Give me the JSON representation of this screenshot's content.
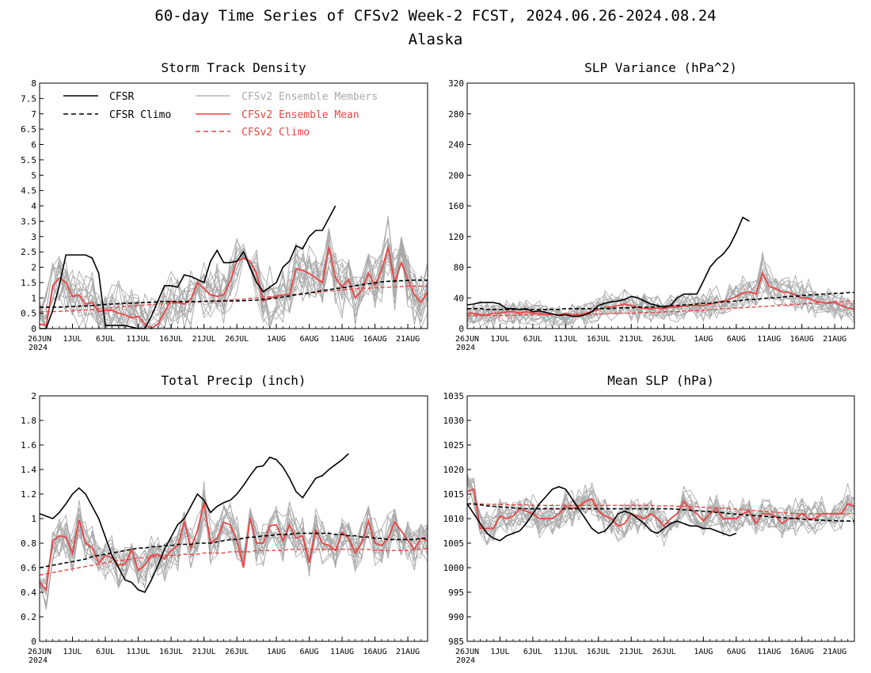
{
  "figure": {
    "title_line1": "60-day Time Series of CFSv2 Week-2 FCST, 2024.06.26-2024.08.24",
    "title_line2": "Alaska"
  },
  "legend": {
    "cfsr": "CFSR",
    "cfsr_climo": "CFSR Climo",
    "members": "CFSv2 Ensemble Members",
    "ens_mean": "CFSv2 Ensemble Mean",
    "cfsv2_climo": "CFSv2 Climo"
  },
  "colors": {
    "cfsr": "#000000",
    "members": "#aaaaaa",
    "mean": "#e84545",
    "cfsv2_climo": "#e84545"
  },
  "chart_data": [
    {
      "id": "storm",
      "type": "line",
      "title": "Storm Track Density",
      "x_ticks": [
        "26JUN",
        "1JUL",
        "6JUL",
        "11JUL",
        "16JUL",
        "21JUL",
        "26JUL",
        "1AUG",
        "6AUG",
        "11AUG",
        "16AUG",
        "21AUG"
      ],
      "x_year": "2024",
      "x_range": [
        0,
        59
      ],
      "y_ticks": [
        "0",
        "0.5",
        "1",
        "1.5",
        "2",
        "2.5",
        "3",
        "3.5",
        "4",
        "4.5",
        "5",
        "5.5",
        "6",
        "6.5",
        "7",
        "7.5",
        "8"
      ],
      "ylim": [
        0,
        8
      ],
      "legend_location": "top-left",
      "series": {
        "cfsr": [
          0,
          0,
          0.6,
          1.4,
          2.4,
          2.4,
          2.4,
          2.4,
          2.3,
          1.8,
          0.1,
          0.1,
          0.1,
          0.1,
          0.05,
          0,
          0,
          0.4,
          0.9,
          1.4,
          1.4,
          1.35,
          1.75,
          1.7,
          1.6,
          1.5,
          2.2,
          2.55,
          2.15,
          2.15,
          2.2,
          2.5,
          2.0,
          1.5,
          1.2,
          1.35,
          1.5,
          2.0,
          2.2,
          2.7,
          2.6,
          3.0,
          3.2,
          3.2,
          3.6,
          4.0
        ],
        "cfsr_climo": [
          0.7,
          0.7,
          0.7,
          0.7,
          0.71,
          0.72,
          0.73,
          0.74,
          0.75,
          0.77,
          0.79,
          0.8,
          0.81,
          0.82,
          0.83,
          0.84,
          0.85,
          0.86,
          0.87,
          0.88,
          0.88,
          0.88,
          0.88,
          0.88,
          0.88,
          0.89,
          0.89,
          0.89,
          0.9,
          0.9,
          0.9,
          0.91,
          0.92,
          0.93,
          0.95,
          0.97,
          1.0,
          1.03,
          1.06,
          1.1,
          1.13,
          1.16,
          1.2,
          1.24,
          1.27,
          1.3,
          1.33,
          1.36,
          1.4,
          1.43,
          1.46,
          1.49,
          1.52,
          1.54,
          1.55,
          1.56,
          1.57,
          1.58,
          1.58,
          1.58
        ],
        "ens_mean": [
          0.15,
          0.1,
          1.4,
          1.65,
          1.5,
          1.05,
          1.1,
          0.8,
          0.85,
          0.55,
          0.6,
          0.6,
          0.5,
          0.45,
          0.35,
          0.4,
          0.15,
          0,
          0.15,
          0.55,
          0.9,
          0.85,
          0.8,
          0.95,
          1.5,
          1.3,
          1.1,
          1.05,
          1.1,
          1.55,
          2.2,
          2.3,
          2.2,
          1.8,
          0.9,
          1.0,
          1.05,
          1.1,
          1.1,
          1.95,
          1.9,
          1.8,
          1.65,
          1.5,
          2.65,
          1.65,
          1.35,
          1.6,
          1.0,
          1.25,
          1.8,
          1.4,
          1.9,
          2.65,
          1.5,
          2.15,
          1.6,
          1.1,
          0.85,
          1.2
        ],
        "cfsv2_climo": [
          0.55,
          0.55,
          0.55,
          0.56,
          0.57,
          0.58,
          0.6,
          0.61,
          0.62,
          0.64,
          0.66,
          0.68,
          0.7,
          0.72,
          0.73,
          0.75,
          0.77,
          0.78,
          0.8,
          0.81,
          0.82,
          0.83,
          0.84,
          0.86,
          0.87,
          0.88,
          0.9,
          0.91,
          0.92,
          0.93,
          0.95,
          0.96,
          0.98,
          1.0,
          1.02,
          1.04,
          1.06,
          1.08,
          1.1,
          1.12,
          1.14,
          1.16,
          1.18,
          1.2,
          1.22,
          1.24,
          1.26,
          1.28,
          1.3,
          1.31,
          1.32,
          1.33,
          1.34,
          1.35,
          1.36,
          1.37,
          1.38,
          1.38,
          1.38,
          1.38
        ]
      }
    },
    {
      "id": "slpvar",
      "type": "line",
      "title": "SLP Variance (hPa^2)",
      "x_ticks": [
        "26JUN",
        "1JUL",
        "6JUL",
        "11JUL",
        "16JUL",
        "21JUL",
        "26JUL",
        "1AUG",
        "6AUG",
        "11AUG",
        "16AUG",
        "21AUG"
      ],
      "x_year": "2024",
      "x_range": [
        0,
        59
      ],
      "y_ticks": [
        "0",
        "40",
        "80",
        "120",
        "160",
        "200",
        "240",
        "280",
        "320"
      ],
      "ylim": [
        0,
        320
      ],
      "series": {
        "cfsr": [
          31,
          32,
          34,
          34,
          34,
          32,
          26,
          26,
          25,
          26,
          22,
          23,
          21,
          19,
          17,
          18,
          16,
          16,
          18,
          22,
          30,
          33,
          35,
          36,
          38,
          42,
          40,
          36,
          32,
          30,
          28,
          30,
          40,
          45,
          45,
          45,
          62,
          80,
          90,
          97,
          108,
          125,
          145,
          140
        ],
        "cfsr_climo": [
          26,
          26,
          26,
          25,
          25,
          25,
          25,
          25,
          25,
          25,
          25,
          25,
          25,
          25,
          25,
          26,
          26,
          26,
          26,
          26,
          26,
          26,
          26,
          27,
          27,
          27,
          28,
          28,
          28,
          29,
          29,
          30,
          30,
          31,
          31,
          32,
          33,
          33,
          34,
          35,
          35,
          36,
          37,
          38,
          38,
          39,
          40,
          40,
          41,
          42,
          42,
          43,
          44,
          44,
          45,
          45,
          46,
          46,
          47,
          47
        ],
        "ens_mean": [
          20,
          20,
          18,
          18,
          20,
          20,
          22,
          22,
          20,
          22,
          20,
          20,
          18,
          19,
          18,
          20,
          18,
          17,
          20,
          22,
          25,
          28,
          28,
          30,
          32,
          30,
          28,
          26,
          26,
          27,
          26,
          28,
          28,
          29,
          30,
          30,
          30,
          32,
          34,
          36,
          38,
          42,
          46,
          48,
          45,
          72,
          55,
          52,
          48,
          47,
          44,
          40,
          40,
          36,
          34,
          33,
          34,
          30,
          27,
          25
        ],
        "cfsv2_climo": [
          17,
          17,
          17,
          17,
          17,
          17,
          17,
          17,
          18,
          18,
          18,
          18,
          18,
          18,
          18,
          18,
          18,
          19,
          19,
          19,
          19,
          19,
          20,
          20,
          20,
          20,
          21,
          21,
          21,
          21,
          22,
          22,
          22,
          23,
          23,
          24,
          24,
          25,
          25,
          26,
          26,
          27,
          27,
          28,
          28,
          29,
          29,
          30,
          30,
          31,
          31,
          32,
          33,
          33,
          34,
          34,
          35,
          35,
          36,
          36
        ]
      }
    },
    {
      "id": "precip",
      "type": "line",
      "title": "Total Precip (inch)",
      "x_ticks": [
        "26JUN",
        "1JUL",
        "6JUL",
        "11JUL",
        "16JUL",
        "21JUL",
        "26JUL",
        "1AUG",
        "6AUG",
        "11AUG",
        "16AUG",
        "21AUG"
      ],
      "x_year": "2024",
      "x_range": [
        0,
        59
      ],
      "y_ticks": [
        "0",
        "0.2",
        "0.4",
        "0.6",
        "0.8",
        "1",
        "1.2",
        "1.4",
        "1.6",
        "1.8",
        "2"
      ],
      "ylim": [
        0,
        2
      ],
      "series": {
        "cfsr": [
          1.04,
          1.02,
          1.0,
          1.05,
          1.12,
          1.2,
          1.25,
          1.2,
          1.1,
          1.0,
          0.85,
          0.7,
          0.6,
          0.5,
          0.48,
          0.42,
          0.4,
          0.5,
          0.62,
          0.75,
          0.85,
          0.95,
          1.0,
          1.1,
          1.2,
          1.15,
          1.05,
          1.1,
          1.13,
          1.15,
          1.2,
          1.27,
          1.35,
          1.42,
          1.43,
          1.5,
          1.48,
          1.42,
          1.33,
          1.22,
          1.17,
          1.25,
          1.33,
          1.35,
          1.4,
          1.44,
          1.48,
          1.53
        ],
        "cfsr_climo": [
          0.6,
          0.61,
          0.62,
          0.63,
          0.64,
          0.65,
          0.66,
          0.67,
          0.69,
          0.7,
          0.71,
          0.72,
          0.73,
          0.74,
          0.75,
          0.76,
          0.76,
          0.77,
          0.77,
          0.78,
          0.78,
          0.79,
          0.79,
          0.79,
          0.8,
          0.8,
          0.8,
          0.81,
          0.82,
          0.83,
          0.83,
          0.84,
          0.85,
          0.85,
          0.86,
          0.86,
          0.87,
          0.87,
          0.87,
          0.88,
          0.88,
          0.88,
          0.88,
          0.88,
          0.88,
          0.87,
          0.87,
          0.86,
          0.86,
          0.85,
          0.85,
          0.84,
          0.84,
          0.83,
          0.83,
          0.83,
          0.83,
          0.83,
          0.84,
          0.84
        ],
        "ens_mean": [
          0.48,
          0.42,
          0.82,
          0.86,
          0.85,
          0.72,
          0.99,
          0.8,
          0.76,
          0.64,
          0.7,
          0.68,
          0.62,
          0.63,
          0.75,
          0.58,
          0.62,
          0.7,
          0.71,
          0.67,
          0.74,
          0.78,
          0.97,
          0.76,
          0.9,
          1.13,
          0.8,
          0.84,
          0.97,
          0.95,
          0.82,
          0.6,
          1.0,
          0.8,
          0.8,
          0.94,
          0.95,
          0.82,
          0.95,
          0.84,
          0.86,
          0.64,
          0.91,
          0.8,
          0.78,
          0.74,
          0.89,
          0.84,
          0.72,
          0.8,
          0.98,
          0.8,
          0.78,
          0.84,
          0.97,
          0.9,
          0.82,
          0.75,
          0.84,
          0.82
        ],
        "cfsv2_climo": [
          0.54,
          0.55,
          0.56,
          0.57,
          0.58,
          0.59,
          0.6,
          0.61,
          0.62,
          0.63,
          0.64,
          0.65,
          0.66,
          0.66,
          0.67,
          0.68,
          0.68,
          0.69,
          0.69,
          0.7,
          0.7,
          0.7,
          0.71,
          0.71,
          0.71,
          0.72,
          0.72,
          0.72,
          0.72,
          0.73,
          0.73,
          0.73,
          0.73,
          0.74,
          0.74,
          0.74,
          0.74,
          0.74,
          0.75,
          0.75,
          0.75,
          0.75,
          0.75,
          0.75,
          0.75,
          0.75,
          0.75,
          0.75,
          0.75,
          0.75,
          0.75,
          0.74,
          0.74,
          0.74,
          0.74,
          0.74,
          0.74,
          0.75,
          0.75,
          0.76
        ]
      }
    },
    {
      "id": "mslp",
      "type": "line",
      "title": "Mean SLP (hPa)",
      "x_ticks": [
        "26JUN",
        "1JUL",
        "6JUL",
        "11JUL",
        "16JUL",
        "21JUL",
        "26JUL",
        "1AUG",
        "6AUG",
        "11AUG",
        "16AUG",
        "21AUG"
      ],
      "x_year": "2024",
      "x_range": [
        0,
        59
      ],
      "y_ticks": [
        "985",
        "990",
        "995",
        "1000",
        "1005",
        "1010",
        "1015",
        "1020",
        "1025",
        "1030",
        "1035"
      ],
      "ylim": [
        985,
        1035
      ],
      "series": {
        "cfsr": [
          1013,
          1011,
          1009,
          1007,
          1006,
          1005.5,
          1006.5,
          1007,
          1007.5,
          1009,
          1011,
          1013,
          1014.5,
          1016,
          1016.5,
          1016,
          1014,
          1012,
          1010,
          1008,
          1007,
          1007.5,
          1009,
          1011,
          1011.5,
          1011,
          1010,
          1009,
          1007.5,
          1007,
          1008,
          1009,
          1009.5,
          1009,
          1008.5,
          1008.5,
          1008,
          1008,
          1007.5,
          1007,
          1006.5,
          1007
        ],
        "cfsr_climo": [
          1013,
          1013,
          1012.8,
          1012.6,
          1012.5,
          1012.4,
          1012.3,
          1012.2,
          1012.1,
          1012,
          1012,
          1012,
          1012,
          1012,
          1012,
          1012,
          1012,
          1012,
          1012,
          1012,
          1012,
          1012,
          1012,
          1012,
          1012,
          1012,
          1012,
          1012,
          1012,
          1012,
          1012,
          1012,
          1011.9,
          1011.8,
          1011.7,
          1011.6,
          1011.5,
          1011.4,
          1011.3,
          1011.2,
          1011,
          1010.9,
          1010.8,
          1010.7,
          1010.6,
          1010.5,
          1010.4,
          1010.3,
          1010.2,
          1010.1,
          1010,
          1009.9,
          1009.8,
          1009.7,
          1009.7,
          1009.6,
          1009.6,
          1009.5,
          1009.5,
          1009.5
        ],
        "ens_mean": [
          1015.5,
          1016,
          1008,
          1008,
          1008,
          1010.5,
          1010,
          1010.5,
          1012,
          1011.5,
          1011,
          1010,
          1010,
          1010,
          1011,
          1012.5,
          1012,
          1012.5,
          1013.5,
          1014,
          1011.5,
          1010.5,
          1010,
          1008.5,
          1009,
          1011,
          1010.5,
          1010,
          1011,
          1010,
          1008.5,
          1010,
          1011,
          1013.5,
          1012,
          1011,
          1009.5,
          1011,
          1012,
          1010,
          1010,
          1010,
          1011,
          1011.5,
          1009,
          1011,
          1011,
          1010.5,
          1009,
          1010,
          1010,
          1011,
          1010,
          1010,
          1011,
          1011,
          1011,
          1011,
          1013,
          1012.5
        ],
        "cfsv2_climo": [
          1013,
          1013,
          1013,
          1012.9,
          1012.9,
          1012.9,
          1012.8,
          1012.8,
          1012.8,
          1012.8,
          1012.7,
          1012.7,
          1012.7,
          1012.7,
          1012.7,
          1012.7,
          1012.7,
          1012.7,
          1012.7,
          1012.7,
          1012.7,
          1012.7,
          1012.7,
          1012.7,
          1012.7,
          1012.7,
          1012.7,
          1012.7,
          1012.7,
          1012.6,
          1012.6,
          1012.6,
          1012.5,
          1012.5,
          1012.4,
          1012.4,
          1012.3,
          1012.2,
          1012.2,
          1012.1,
          1012,
          1011.9,
          1011.8,
          1011.7,
          1011.6,
          1011.5,
          1011.4,
          1011.3,
          1011.2,
          1011.1,
          1011,
          1011,
          1011,
          1011,
          1011,
          1011,
          1011,
          1011,
          1011,
          1011
        ]
      }
    }
  ]
}
